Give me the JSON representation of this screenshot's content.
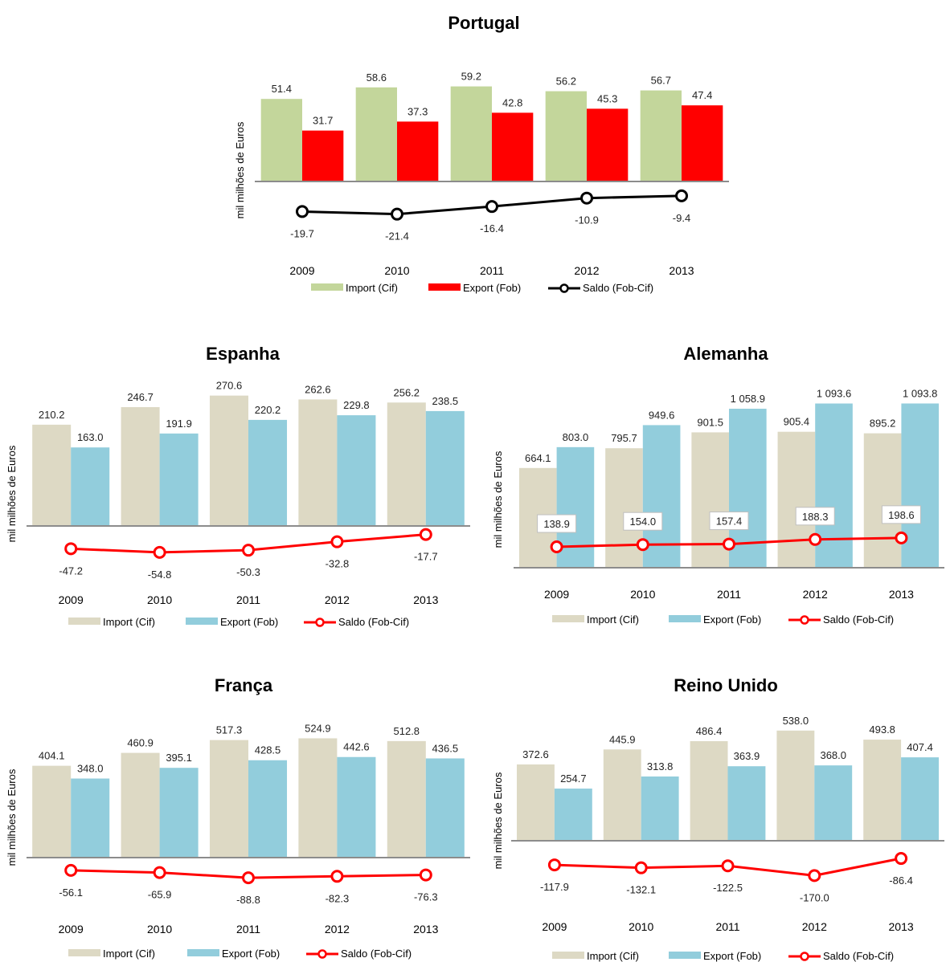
{
  "chart_data": [
    {
      "type": "bar",
      "title": "Portugal",
      "ylabel": "mil milhões de Euros",
      "categories": [
        "2009",
        "2010",
        "2011",
        "2012",
        "2013"
      ],
      "series": [
        {
          "name": "Import (Cif)",
          "type": "bar",
          "values": [
            51.4,
            58.6,
            59.2,
            56.2,
            56.7
          ],
          "labels": [
            "51.4",
            "58.6",
            "59.2",
            "56.2",
            "56.7"
          ]
        },
        {
          "name": "Export (Fob)",
          "type": "bar",
          "values": [
            31.7,
            37.3,
            42.8,
            45.3,
            47.4
          ],
          "labels": [
            "31.7",
            "37.3",
            "42.8",
            "45.3",
            "47.4"
          ]
        },
        {
          "name": "Saldo (Fob-Cif)",
          "type": "line",
          "values": [
            -19.7,
            -21.4,
            -16.4,
            -10.9,
            -9.4
          ],
          "labels": [
            "-19.7",
            "-21.4",
            "-16.4",
            "-10.9",
            "-9.4"
          ]
        }
      ],
      "colors": {
        "import": "#c3d69b",
        "export": "#ff0000",
        "saldo": "#000000"
      },
      "legend": "bottom"
    },
    {
      "type": "bar",
      "title": "Espanha",
      "ylabel": "mil milhões de Euros",
      "categories": [
        "2009",
        "2010",
        "2011",
        "2012",
        "2013"
      ],
      "series": [
        {
          "name": "Import (Cif)",
          "type": "bar",
          "values": [
            210.2,
            246.7,
            270.6,
            262.6,
            256.2
          ],
          "labels": [
            "210.2",
            "246.7",
            "270.6",
            "262.6",
            "256.2"
          ]
        },
        {
          "name": "Export (Fob)",
          "type": "bar",
          "values": [
            163.0,
            191.9,
            220.2,
            229.8,
            238.5
          ],
          "labels": [
            "163.0",
            "191.9",
            "220.2",
            "229.8",
            "238.5"
          ]
        },
        {
          "name": "Saldo (Fob-Cif)",
          "type": "line",
          "values": [
            -47.2,
            -54.8,
            -50.3,
            -32.8,
            -17.7
          ],
          "labels": [
            "-47.2",
            "-54.8",
            "-50.3",
            "-32.8",
            "-17.7"
          ]
        }
      ],
      "colors": {
        "import": "#ddd9c4",
        "export": "#92cddc",
        "saldo": "#ff0000"
      },
      "legend": "bottom"
    },
    {
      "type": "bar",
      "title": "Alemanha",
      "ylabel": "mil milhões de Euros",
      "categories": [
        "2009",
        "2010",
        "2011",
        "2012",
        "2013"
      ],
      "series": [
        {
          "name": "Import (Cif)",
          "type": "bar",
          "values": [
            664.1,
            795.7,
            901.5,
            905.4,
            895.2
          ],
          "labels": [
            "664.1",
            "795.7",
            "901.5",
            "905.4",
            "895.2"
          ]
        },
        {
          "name": "Export (Fob)",
          "type": "bar",
          "values": [
            803.0,
            949.6,
            1058.9,
            1093.6,
            1093.8
          ],
          "labels": [
            "803.0",
            "949.6",
            "1 058.9",
            "1 093.6",
            "1 093.8"
          ]
        },
        {
          "name": "Saldo (Fob-Cif)",
          "type": "line",
          "values": [
            138.9,
            154.0,
            157.4,
            188.3,
            198.6
          ],
          "labels": [
            "138.9",
            "154.0",
            "157.4",
            "188.3",
            "198.6"
          ]
        }
      ],
      "colors": {
        "import": "#ddd9c4",
        "export": "#92cddc",
        "saldo": "#ff0000"
      },
      "legend": "bottom"
    },
    {
      "type": "bar",
      "title": "França",
      "ylabel": "mil milhões de Euros",
      "categories": [
        "2009",
        "2010",
        "2011",
        "2012",
        "2013"
      ],
      "series": [
        {
          "name": "Import (Cif)",
          "type": "bar",
          "values": [
            404.1,
            460.9,
            517.3,
            524.9,
            512.8
          ],
          "labels": [
            "404.1",
            "460.9",
            "517.3",
            "524.9",
            "512.8"
          ]
        },
        {
          "name": "Export (Fob)",
          "type": "bar",
          "values": [
            348.0,
            395.1,
            428.5,
            442.6,
            436.5
          ],
          "labels": [
            "348.0",
            "395.1",
            "428.5",
            "442.6",
            "436.5"
          ]
        },
        {
          "name": "Saldo (Fob-Cif)",
          "type": "line",
          "values": [
            -56.1,
            -65.9,
            -88.8,
            -82.3,
            -76.3
          ],
          "labels": [
            "-56.1",
            "-65.9",
            "-88.8",
            "-82.3",
            "-76.3"
          ]
        }
      ],
      "colors": {
        "import": "#ddd9c4",
        "export": "#92cddc",
        "saldo": "#ff0000"
      },
      "legend": "bottom"
    },
    {
      "type": "bar",
      "title": "Reino Unido",
      "ylabel": "mil milhões de Euros",
      "categories": [
        "2009",
        "2010",
        "2011",
        "2012",
        "2013"
      ],
      "series": [
        {
          "name": "Import (Cif)",
          "type": "bar",
          "values": [
            372.6,
            445.9,
            486.4,
            538.0,
            493.8
          ],
          "labels": [
            "372.6",
            "445.9",
            "486.4",
            "538.0",
            "493.8"
          ]
        },
        {
          "name": "Export (Fob)",
          "type": "bar",
          "values": [
            254.7,
            313.8,
            363.9,
            368.0,
            407.4
          ],
          "labels": [
            "254.7",
            "313.8",
            "363.9",
            "368.0",
            "407.4"
          ]
        },
        {
          "name": "Saldo (Fob-Cif)",
          "type": "line",
          "values": [
            -117.9,
            -132.1,
            -122.5,
            -170.0,
            -86.4
          ],
          "labels": [
            "-117.9",
            "-132.1",
            "-122.5",
            "-170.0",
            "-86.4"
          ]
        }
      ],
      "colors": {
        "import": "#ddd9c4",
        "export": "#92cddc",
        "saldo": "#ff0000"
      },
      "legend": "bottom"
    }
  ]
}
